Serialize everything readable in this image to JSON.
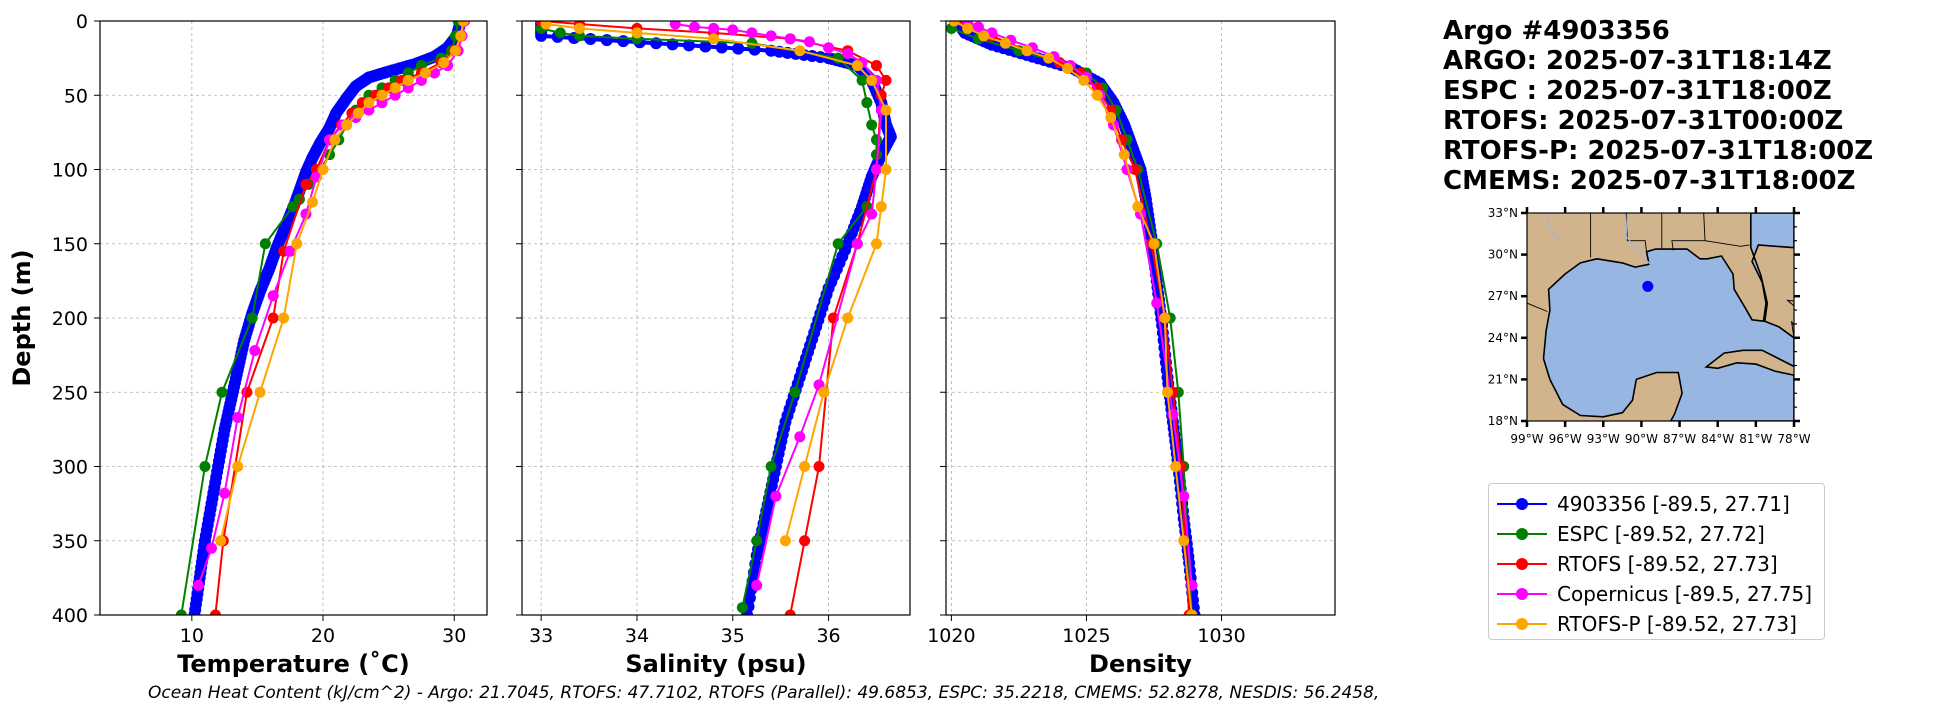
{
  "info": {
    "title": "Argo #4903356",
    "lines": [
      "ARGO: 2025-07-31T18:14Z",
      "ESPC : 2025-07-31T18:00Z",
      "RTOFS: 2025-07-31T00:00Z",
      "RTOFS-P: 2025-07-31T18:00Z",
      "CMEMS: 2025-07-31T18:00Z"
    ]
  },
  "footer": {
    "ohc_text": "Ocean Heat Content (kJ/cm^2) - Argo: 21.7045,  RTOFS: 47.7102,  RTOFS (Parallel): 49.6853,  ESPC: 35.2218,  CMEMS: 52.8278,  NESDIS: 56.2458,"
  },
  "legend": [
    {
      "label": "4903356 [-89.5, 27.71]",
      "color": "#0000ff"
    },
    {
      "label": "ESPC [-89.52, 27.72]",
      "color": "#008000"
    },
    {
      "label": "RTOFS [-89.52, 27.73]",
      "color": "#ff0000"
    },
    {
      "label": "Copernicus [-89.5, 27.75]",
      "color": "#ff00ff"
    },
    {
      "label": "RTOFS-P [-89.52, 27.73]",
      "color": "#ffa500"
    }
  ],
  "map": {
    "lat_ticks": [
      "33°N",
      "30°N",
      "27°N",
      "24°N",
      "21°N",
      "18°N"
    ],
    "lon_ticks": [
      "99°W",
      "96°W",
      "93°W",
      "90°W",
      "87°W",
      "84°W",
      "81°W",
      "78°W"
    ],
    "lon_range": [
      -99,
      -78
    ],
    "lat_range": [
      18,
      33
    ],
    "float_position": [
      -89.5,
      27.71
    ],
    "land_color": "#d2b48c",
    "ocean_color": "#97b6e1",
    "marker_color": "#0000ff"
  },
  "chart_data": [
    {
      "type": "line",
      "xlabel": "Temperature (˚C)",
      "ylabel": "Depth (m)",
      "xlim": [
        3,
        32.5
      ],
      "ylim": [
        400,
        0
      ],
      "xticks": [
        10,
        20,
        30
      ],
      "yticks": [
        0,
        50,
        100,
        150,
        200,
        250,
        300,
        350,
        400
      ],
      "grid": true,
      "series": [
        {
          "name": "4903356 [-89.5, 27.71]",
          "color": "#0000ff",
          "dense": true,
          "x": [
            30.5,
            30.2,
            29.5,
            28.5,
            27.0,
            25.0,
            23.5,
            22.5,
            21.8,
            21.0,
            20.5,
            19.8,
            19.2,
            18.7,
            18.3,
            17.9,
            17.2,
            16.5,
            15.9,
            15.2,
            14.6,
            14.0,
            13.5,
            13.0,
            12.5,
            12.0,
            11.5,
            11.0,
            10.6,
            10.2
          ],
          "y": [
            0,
            10,
            18,
            24,
            29,
            34,
            38,
            44,
            52,
            62,
            72,
            82,
            92,
            102,
            112,
            122,
            137,
            152,
            167,
            182,
            197,
            215,
            235,
            255,
            275,
            300,
            325,
            350,
            375,
            400
          ]
        },
        {
          "name": "ESPC [-89.52, 27.72]",
          "color": "#008000",
          "x": [
            30.3,
            30.1,
            29.8,
            29.0,
            27.5,
            26.5,
            25.5,
            24.5,
            23.5,
            22.5,
            21.8,
            21.2,
            20.5,
            19.8,
            18.9,
            18.2,
            17.7,
            15.6,
            14.6,
            12.3,
            11.0,
            9.2
          ],
          "y": [
            0,
            10,
            20,
            25,
            30,
            35,
            40,
            45,
            50,
            60,
            70,
            80,
            90,
            100,
            110,
            120,
            125,
            150,
            200,
            250,
            300,
            400
          ]
        },
        {
          "name": "RTOFS [-89.52, 27.73]",
          "color": "#ff0000",
          "x": [
            30.7,
            30.5,
            30.0,
            29.0,
            27.5,
            26.0,
            25.0,
            24.0,
            23.0,
            22.2,
            21.4,
            20.5,
            19.5,
            18.7,
            17.0,
            16.2,
            14.2,
            12.4,
            11.8
          ],
          "y": [
            0,
            10,
            20,
            28,
            35,
            40,
            45,
            50,
            55,
            62,
            70,
            80,
            100,
            110,
            155,
            200,
            250,
            350,
            400
          ]
        },
        {
          "name": "Copernicus [-89.5, 27.75]",
          "color": "#ff00ff",
          "x": [
            30.8,
            30.6,
            30.3,
            29.5,
            28.5,
            27.5,
            26.5,
            25.5,
            24.5,
            23.5,
            22.5,
            21.5,
            20.5,
            19.5,
            18.7,
            17.5,
            16.2,
            14.8,
            13.5,
            12.5,
            11.5,
            10.5
          ],
          "y": [
            0,
            10,
            20,
            30,
            35,
            40,
            45,
            50,
            55,
            60,
            65,
            70,
            80,
            105,
            130,
            155,
            185,
            222,
            267,
            318,
            355,
            380
          ]
        },
        {
          "name": "RTOFS-P [-89.52, 27.73]",
          "color": "#ffa500",
          "x": [
            30.7,
            30.5,
            30.1,
            29.2,
            27.8,
            26.5,
            25.5,
            24.5,
            23.5,
            22.7,
            21.8,
            20.9,
            20.0,
            19.2,
            18.0,
            17.0,
            15.2,
            13.5,
            12.2
          ],
          "y": [
            0,
            10,
            20,
            28,
            35,
            40,
            45,
            50,
            55,
            62,
            70,
            80,
            100,
            122,
            150,
            200,
            250,
            300,
            350
          ]
        }
      ]
    },
    {
      "type": "line",
      "xlabel": "Salinity (psu)",
      "ylabel": "",
      "xlim": [
        32.8,
        36.85
      ],
      "ylim": [
        400,
        0
      ],
      "xticks": [
        33,
        34,
        35,
        36
      ],
      "yticks": [
        0,
        50,
        100,
        150,
        200,
        250,
        300,
        350,
        400
      ],
      "grid": true,
      "series": [
        {
          "name": "4903356 [-89.5, 27.71]",
          "color": "#0000ff",
          "dense": true,
          "x": [
            33.0,
            33.0,
            34.2,
            35.4,
            36.0,
            36.3,
            36.45,
            36.55,
            36.6,
            36.65,
            36.55,
            36.45,
            36.35,
            36.2,
            36.0,
            35.85,
            35.7,
            35.55,
            35.45,
            35.35,
            35.25,
            35.15
          ],
          "y": [
            0,
            10,
            15,
            20,
            25,
            30,
            40,
            55,
            70,
            78,
            90,
            105,
            125,
            150,
            180,
            210,
            240,
            270,
            300,
            330,
            360,
            400
          ]
        },
        {
          "name": "ESPC [-89.52, 27.72]",
          "color": "#008000",
          "x": [
            33.0,
            33.2,
            33.4,
            34.0,
            35.2,
            36.1,
            36.35,
            36.4,
            36.45,
            36.5,
            36.5,
            36.5,
            36.4,
            36.1,
            35.65,
            35.4,
            35.25,
            35.1
          ],
          "y": [
            5,
            8,
            10,
            12,
            15,
            25,
            40,
            55,
            70,
            80,
            90,
            100,
            125,
            150,
            250,
            300,
            350,
            395
          ]
        },
        {
          "name": "RTOFS [-89.52, 27.73]",
          "color": "#ff0000",
          "x": [
            33.0,
            33.4,
            34.0,
            34.8,
            35.6,
            36.2,
            36.5,
            36.6,
            36.55,
            36.5,
            36.3,
            36.05,
            35.9,
            35.75,
            35.6
          ],
          "y": [
            0,
            2,
            5,
            8,
            12,
            20,
            30,
            40,
            50,
            100,
            150,
            200,
            300,
            350,
            400
          ]
        },
        {
          "name": "Copernicus [-89.5, 27.75]",
          "color": "#ff00ff",
          "x": [
            34.4,
            34.6,
            34.8,
            35.0,
            35.2,
            35.4,
            35.6,
            35.8,
            36.0,
            36.2,
            36.35,
            36.5,
            36.55,
            36.5,
            36.45,
            36.3,
            35.9,
            35.7,
            35.45,
            35.25
          ],
          "y": [
            2,
            4,
            5,
            6,
            8,
            10,
            12,
            14,
            18,
            22,
            28,
            40,
            60,
            100,
            130,
            150,
            245,
            280,
            320,
            380
          ]
        },
        {
          "name": "RTOFS-P [-89.52, 27.73]",
          "color": "#ffa500",
          "x": [
            33.05,
            33.4,
            34.0,
            34.8,
            35.7,
            36.3,
            36.45,
            36.6,
            36.6,
            36.55,
            36.5,
            36.2,
            35.95,
            35.75,
            35.55
          ],
          "y": [
            2,
            5,
            8,
            12,
            20,
            30,
            40,
            60,
            100,
            125,
            150,
            200,
            250,
            300,
            350
          ]
        }
      ]
    },
    {
      "type": "line",
      "xlabel": "Density",
      "ylabel": "",
      "xlim": [
        1019.8,
        1034.2
      ],
      "ylim": [
        400,
        0
      ],
      "xticks": [
        1020,
        1025,
        1030
      ],
      "yticks": [
        0,
        50,
        100,
        150,
        200,
        250,
        300,
        350,
        400
      ],
      "grid": true,
      "series": [
        {
          "name": "4903356 [-89.5, 27.71]",
          "color": "#0000ff",
          "dense": true,
          "x": [
            1020.2,
            1020.5,
            1021.5,
            1023.0,
            1024.5,
            1025.5,
            1026.0,
            1026.4,
            1026.7,
            1027.0,
            1027.2,
            1027.4,
            1027.6,
            1027.8,
            1028.0,
            1028.2,
            1028.4,
            1028.6,
            1028.8,
            1029.0
          ],
          "y": [
            0,
            8,
            16,
            24,
            32,
            42,
            55,
            70,
            85,
            100,
            120,
            145,
            175,
            205,
            240,
            270,
            300,
            335,
            365,
            400
          ]
        },
        {
          "name": "ESPC [-89.52, 27.72]",
          "color": "#008000",
          "x": [
            1020.0,
            1021.0,
            1022.5,
            1024.0,
            1025.0,
            1025.6,
            1026.1,
            1026.5,
            1026.9,
            1027.6,
            1028.1,
            1028.4,
            1028.6,
            1028.9
          ],
          "y": [
            5,
            12,
            20,
            28,
            35,
            45,
            60,
            80,
            100,
            150,
            200,
            250,
            300,
            400
          ]
        },
        {
          "name": "RTOFS [-89.52, 27.73]",
          "color": "#ff0000",
          "x": [
            1020.4,
            1021.5,
            1022.8,
            1024.0,
            1024.8,
            1025.4,
            1025.9,
            1026.3,
            1026.8,
            1027.4,
            1027.9,
            1028.2,
            1028.5,
            1028.8
          ],
          "y": [
            0,
            10,
            20,
            28,
            35,
            45,
            60,
            80,
            100,
            150,
            200,
            250,
            300,
            400
          ]
        },
        {
          "name": "Copernicus [-89.5, 27.75]",
          "color": "#ff00ff",
          "x": [
            1020.6,
            1021.0,
            1021.5,
            1022.2,
            1023.0,
            1023.8,
            1024.4,
            1025.0,
            1025.5,
            1026.0,
            1026.5,
            1027.0,
            1027.6,
            1028.2,
            1028.6,
            1028.9
          ],
          "y": [
            0,
            4,
            8,
            13,
            18,
            24,
            30,
            38,
            50,
            70,
            100,
            130,
            190,
            265,
            320,
            380
          ]
        },
        {
          "name": "RTOFS-P [-89.52, 27.73]",
          "color": "#ffa500",
          "x": [
            1020.1,
            1020.6,
            1021.2,
            1022.0,
            1022.8,
            1023.6,
            1024.3,
            1024.9,
            1025.4,
            1025.9,
            1026.4,
            1026.9,
            1027.5,
            1027.9,
            1028.0,
            1028.3,
            1028.6,
            1028.9
          ],
          "y": [
            0,
            5,
            10,
            15,
            20,
            25,
            32,
            40,
            50,
            65,
            90,
            125,
            150,
            200,
            250,
            300,
            350,
            400
          ]
        }
      ]
    }
  ]
}
